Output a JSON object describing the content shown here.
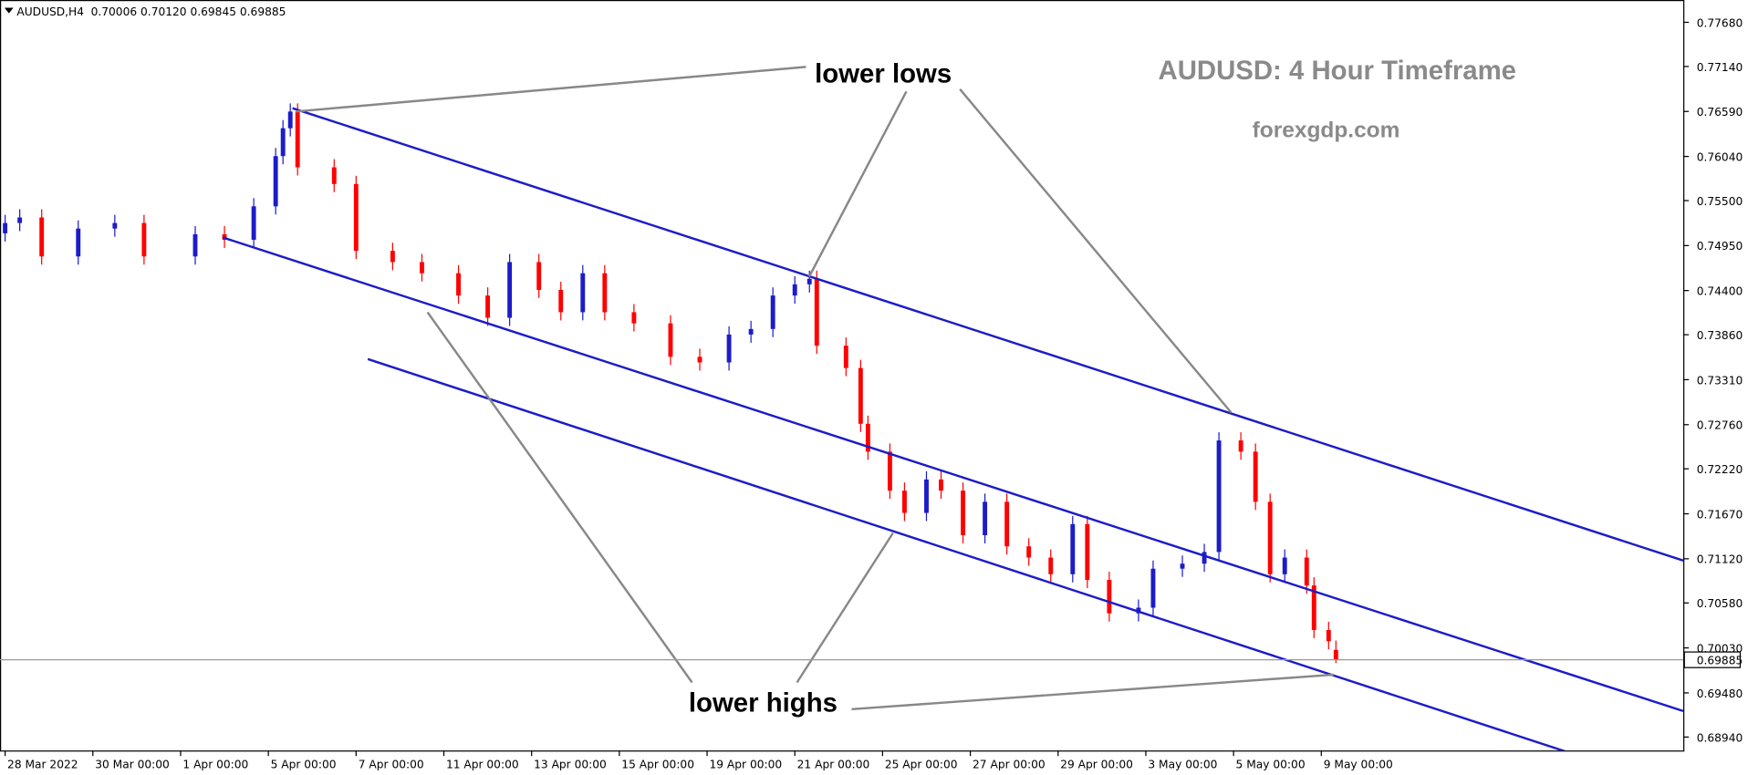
{
  "chart_data": {
    "type": "candlestick",
    "title": "AUDUSD: 4 Hour Timeframe",
    "subtitle": "forexgdp.com",
    "header": {
      "symbol": "AUDUSD,H4",
      "ohlc": [
        "0.70006",
        "0.70120",
        "0.69845",
        "0.69885"
      ]
    },
    "annotations": [
      "lower lows",
      "lower highs"
    ],
    "bull_color": "#1c1cc8",
    "bear_color": "#ff0000",
    "channel_color": "#1c1cc8",
    "x": [
      -4,
      -2,
      1,
      6,
      11,
      15,
      22,
      26,
      30,
      33,
      34,
      35,
      36,
      41,
      44,
      49,
      53,
      58,
      62,
      65,
      69,
      72,
      75,
      78,
      82,
      87,
      91,
      95,
      98,
      101,
      104,
      106,
      107,
      111,
      113,
      114,
      117,
      119,
      122,
      124,
      127,
      130,
      133,
      136,
      139,
      142,
      144,
      147,
      151,
      153,
      157,
      160,
      162,
      165,
      167,
      169,
      171,
      174,
      175,
      177,
      178
    ],
    "open": [
      0.751,
      0.75226,
      0.75294,
      0.74817,
      0.75158,
      0.75226,
      0.74817,
      0.75089,
      0.75021,
      0.7543,
      0.76044,
      0.76385,
      0.76589,
      0.75907,
      0.75703,
      0.74885,
      0.74748,
      0.74612,
      0.74339,
      0.74067,
      0.74748,
      0.74408,
      0.74135,
      0.74612,
      0.74135,
      0.73999,
      0.7359,
      0.73521,
      0.73862,
      0.7393,
      0.74339,
      0.74476,
      0.74544,
      0.73726,
      0.73453,
      0.72771,
      0.7243,
      0.71953,
      0.71681,
      0.7209,
      0.71953,
      0.71408,
      0.71817,
      0.71272,
      0.71135,
      0.70931,
      0.71544,
      0.70862,
      0.70453,
      0.70522,
      0.70999,
      0.7106,
      0.71203,
      0.72567,
      0.7243,
      0.71817,
      0.70931,
      0.71135,
      0.70794,
      0.70249,
      0.70006
    ],
    "high": [
      0.75326,
      0.75394,
      0.75394,
      0.75258,
      0.75326,
      0.75326,
      0.75189,
      0.75189,
      0.7553,
      0.76144,
      0.76485,
      0.76689,
      0.76689,
      0.76007,
      0.75803,
      0.74985,
      0.74848,
      0.74712,
      0.74439,
      0.74848,
      0.74848,
      0.74508,
      0.74712,
      0.74712,
      0.74235,
      0.74099,
      0.7369,
      0.73962,
      0.7403,
      0.74439,
      0.74576,
      0.74644,
      0.74644,
      0.73826,
      0.73553,
      0.72871,
      0.7253,
      0.72053,
      0.7219,
      0.7219,
      0.72053,
      0.71917,
      0.71917,
      0.71372,
      0.71235,
      0.71644,
      0.71644,
      0.70962,
      0.70622,
      0.71099,
      0.7116,
      0.71303,
      0.72667,
      0.72667,
      0.7253,
      0.71917,
      0.71235,
      0.71235,
      0.70894,
      0.70349,
      0.7012
    ],
    "low": [
      0.75,
      0.75126,
      0.74717,
      0.74717,
      0.75058,
      0.74717,
      0.74717,
      0.74921,
      0.74921,
      0.7533,
      0.75944,
      0.76285,
      0.75807,
      0.75603,
      0.74785,
      0.74648,
      0.74512,
      0.74239,
      0.73967,
      0.73967,
      0.74308,
      0.74035,
      0.74035,
      0.74035,
      0.73899,
      0.7349,
      0.73421,
      0.73421,
      0.73762,
      0.7383,
      0.74239,
      0.74376,
      0.73626,
      0.73353,
      0.72671,
      0.7233,
      0.71853,
      0.71581,
      0.71581,
      0.71853,
      0.71308,
      0.71308,
      0.71172,
      0.71035,
      0.70831,
      0.70831,
      0.70762,
      0.70353,
      0.70353,
      0.70422,
      0.70899,
      0.7096,
      0.71103,
      0.7233,
      0.71717,
      0.70831,
      0.70831,
      0.70694,
      0.70149,
      0.70012,
      0.69845
    ],
    "close": [
      0.75226,
      0.75294,
      0.74817,
      0.75158,
      0.75226,
      0.74817,
      0.75089,
      0.75021,
      0.7543,
      0.76044,
      0.76385,
      0.76589,
      0.75907,
      0.75703,
      0.74885,
      0.74748,
      0.74612,
      0.74339,
      0.74067,
      0.74748,
      0.74408,
      0.74135,
      0.74612,
      0.74135,
      0.73999,
      0.7359,
      0.73521,
      0.73862,
      0.7393,
      0.74339,
      0.74476,
      0.74544,
      0.73726,
      0.73453,
      0.72771,
      0.7243,
      0.71953,
      0.71681,
      0.7209,
      0.71953,
      0.71408,
      0.71817,
      0.71272,
      0.71135,
      0.70931,
      0.71544,
      0.70862,
      0.70453,
      0.70522,
      0.70999,
      0.7106,
      0.71203,
      0.72567,
      0.7243,
      0.71817,
      0.70931,
      0.71135,
      0.70794,
      0.70249,
      0.70112,
      0.69885
    ],
    "channel_lines": [
      {
        "x": [
          35.3,
          225.5
        ],
        "y": [
          0.7663,
          0.71098
        ]
      },
      {
        "x": [
          25.8,
          225.5
        ],
        "y": [
          0.75048,
          0.69258
        ]
      },
      {
        "x": [
          45.6,
          211.3
        ],
        "y": [
          0.73562,
          0.68708
        ]
      }
    ],
    "last_price": {
      "value": 0.69885,
      "label": "0.69885"
    },
    "xlim": [
      -4.7,
      225.5
    ],
    "ylim": [
      0.68776,
      0.77953
    ],
    "xticks": [
      {
        "value": -4,
        "label": "28 Mar 2022"
      },
      {
        "value": 8,
        "label": "30 Mar 00:00"
      },
      {
        "value": 20,
        "label": "1 Apr 00:00"
      },
      {
        "value": 32,
        "label": "5 Apr 00:00"
      },
      {
        "value": 44,
        "label": "7 Apr 00:00"
      },
      {
        "value": 56,
        "label": "11 Apr 00:00"
      },
      {
        "value": 68,
        "label": "13 Apr 00:00"
      },
      {
        "value": 80,
        "label": "15 Apr 00:00"
      },
      {
        "value": 92,
        "label": "19 Apr 00:00"
      },
      {
        "value": 104,
        "label": "21 Apr 00:00"
      },
      {
        "value": 116,
        "label": "25 Apr 00:00"
      },
      {
        "value": 128,
        "label": "27 Apr 00:00"
      },
      {
        "value": 140,
        "label": "29 Apr 00:00"
      },
      {
        "value": 152,
        "label": "3 May 00:00"
      },
      {
        "value": 164,
        "label": "5 May 00:00"
      },
      {
        "value": 176,
        "label": "9 May 00:00"
      }
    ],
    "yticks": [
      {
        "value": 0.7768,
        "label": "0.77680"
      },
      {
        "value": 0.7714,
        "label": "0.77140"
      },
      {
        "value": 0.7659,
        "label": "0.76590"
      },
      {
        "value": 0.7604,
        "label": "0.76040"
      },
      {
        "value": 0.755,
        "label": "0.75500"
      },
      {
        "value": 0.7495,
        "label": "0.74950"
      },
      {
        "value": 0.744,
        "label": "0.74400"
      },
      {
        "value": 0.7386,
        "label": "0.73860"
      },
      {
        "value": 0.7331,
        "label": "0.73310"
      },
      {
        "value": 0.7276,
        "label": "0.72760"
      },
      {
        "value": 0.7222,
        "label": "0.72220"
      },
      {
        "value": 0.7167,
        "label": "0.71670"
      },
      {
        "value": 0.7112,
        "label": "0.71120"
      },
      {
        "value": 0.7058,
        "label": "0.70580"
      },
      {
        "value": 0.7003,
        "label": "0.70030"
      },
      {
        "value": 0.6948,
        "label": "0.69480"
      },
      {
        "value": 0.6894,
        "label": "0.68940"
      }
    ]
  }
}
